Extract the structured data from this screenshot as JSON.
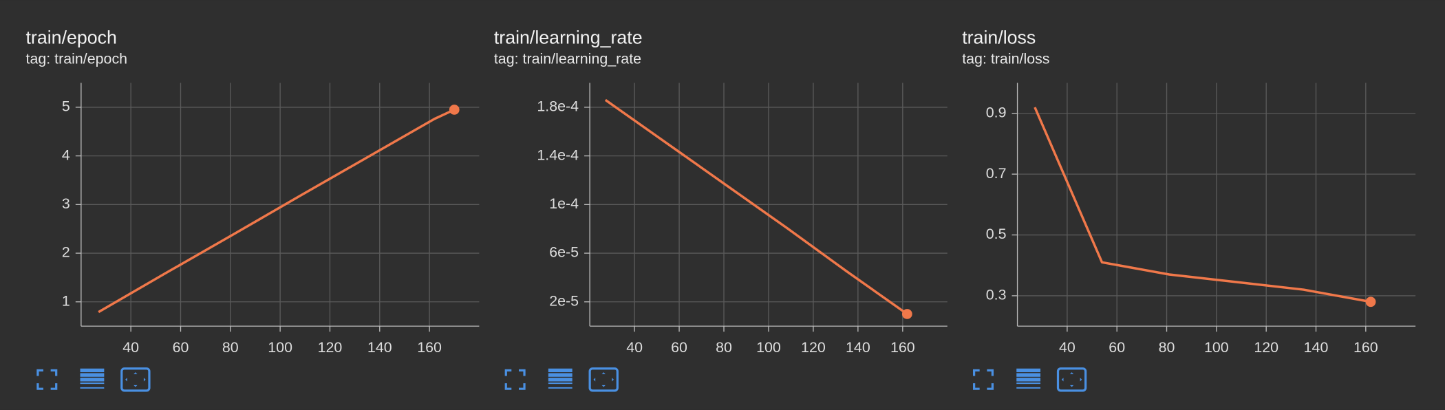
{
  "chart_data": [
    {
      "type": "line",
      "title": "train/epoch",
      "subtitle": "tag: train/epoch",
      "x": [
        27,
        54,
        81,
        108,
        135,
        162,
        170
      ],
      "values": [
        0.79,
        1.59,
        2.38,
        3.18,
        3.97,
        4.76,
        4.95
      ],
      "color": "#f0784a",
      "xlim": [
        20,
        180
      ],
      "xticks": [
        40,
        60,
        80,
        100,
        120,
        140,
        160
      ],
      "ylim": [
        0.5,
        5.5
      ],
      "yticks": [
        1,
        2,
        3,
        4,
        5
      ],
      "grid": true
    },
    {
      "type": "line",
      "title": "train/learning_rate",
      "subtitle": "tag: train/learning_rate",
      "x": [
        27,
        54,
        81,
        108,
        135,
        162
      ],
      "values": [
        0.000186,
        0.000151,
        0.000116,
        8.1e-05,
        4.5e-05,
        1e-05
      ],
      "color": "#f0784a",
      "xlim": [
        20,
        180
      ],
      "xticks": [
        40,
        60,
        80,
        100,
        120,
        140,
        160
      ],
      "ylim": [
        0,
        0.0002
      ],
      "yticks": [
        {
          "value": 2e-05,
          "label": "2e-5"
        },
        {
          "value": 6e-05,
          "label": "6e-5"
        },
        {
          "value": 0.0001,
          "label": "1e-4"
        },
        {
          "value": 0.00014,
          "label": "1.4e-4"
        },
        {
          "value": 0.00018,
          "label": "1.8e-4"
        }
      ],
      "grid": true
    },
    {
      "type": "line",
      "title": "train/loss",
      "subtitle": "tag: train/loss",
      "x": [
        27,
        54,
        81,
        108,
        135,
        162
      ],
      "values": [
        0.92,
        0.41,
        0.37,
        0.345,
        0.32,
        0.28
      ],
      "color": "#f0784a",
      "xlim": [
        20,
        180
      ],
      "xticks": [
        40,
        60,
        80,
        100,
        120,
        140,
        160
      ],
      "ylim": [
        0.2,
        1.0
      ],
      "yticks": [
        0.3,
        0.5,
        0.7,
        0.9
      ],
      "grid": true
    }
  ]
}
